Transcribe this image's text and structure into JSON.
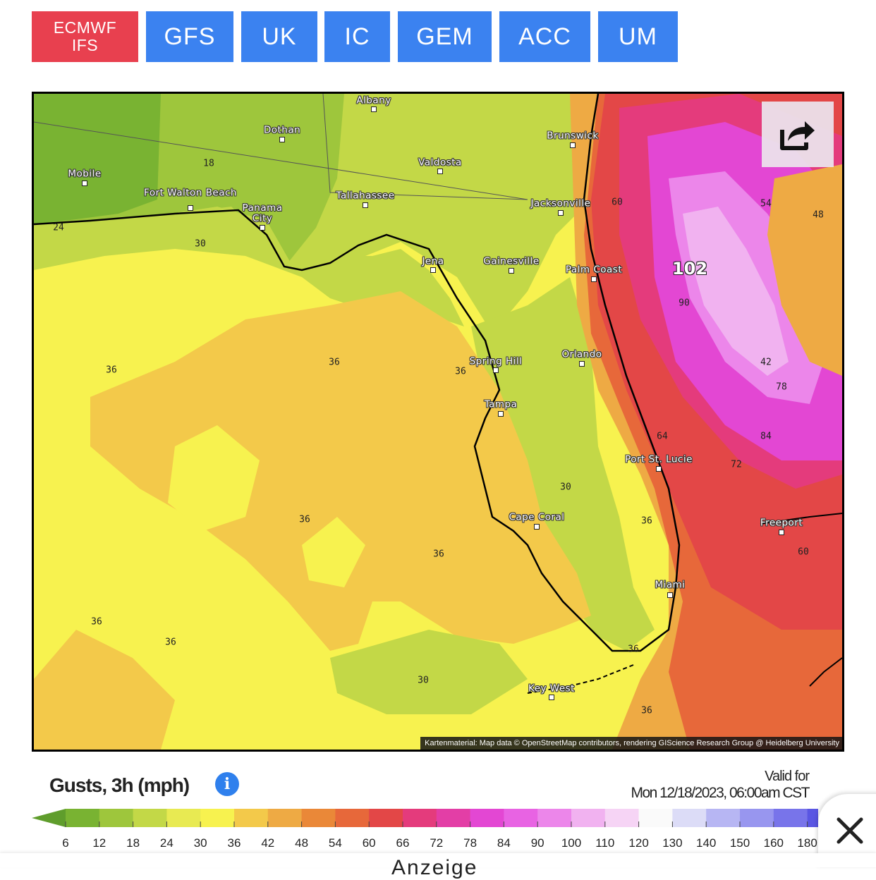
{
  "model_tabs": [
    {
      "label_line1": "ECMWF",
      "label_line2": "IFS",
      "active": true
    },
    {
      "label": "GFS",
      "active": false
    },
    {
      "label": "UK",
      "active": false
    },
    {
      "label": "IC",
      "active": false
    },
    {
      "label": "GEM",
      "active": false
    },
    {
      "label": "ACC",
      "active": false
    },
    {
      "label": "UM",
      "active": false
    }
  ],
  "map": {
    "share_icon": "share-icon",
    "attribution": "Kartenmaterial: Map data © OpenStreetMap contributors, rendering GIScience Research Group @ Heidelberg University",
    "cities": [
      "Albany",
      "Dothan",
      "Brunswick",
      "Valdosta",
      "Mobile",
      "Fort Walton Beach",
      "Panama City",
      "Tallahassee",
      "Jacksonville",
      "Jena",
      "Gainesville",
      "Palm Coast",
      "Spring Hill",
      "Orlando",
      "Tampa",
      "Port St. Lucie",
      "Cape Coral",
      "Freeport",
      "Miami",
      "Key West"
    ],
    "contour_labels": [
      "18",
      "24",
      "30",
      "36",
      "36",
      "36",
      "36",
      "36",
      "36",
      "36",
      "36",
      "36",
      "30",
      "30",
      "36",
      "36",
      "60",
      "54",
      "48",
      "90",
      "42",
      "78",
      "84",
      "72",
      "64",
      "60"
    ],
    "max_label": "102"
  },
  "legend": {
    "title": "Gusts, 3h (mph)",
    "info_icon": "info-icon",
    "valid_label": "Valid for",
    "valid_time": "Mon 12/18/2023, 06:00am CST",
    "ticks": [
      "6",
      "12",
      "18",
      "24",
      "30",
      "36",
      "42",
      "48",
      "54",
      "60",
      "66",
      "72",
      "78",
      "84",
      "90",
      "100",
      "110",
      "120",
      "130",
      "140",
      "150",
      "160",
      "180"
    ],
    "colors": [
      "#5f9d2c",
      "#79b332",
      "#9ec63c",
      "#c3d847",
      "#e8ea52",
      "#f7f24f",
      "#f3c94a",
      "#eeaa44",
      "#ea8838",
      "#e7683a",
      "#e34747",
      "#e43b7c",
      "#e33ea6",
      "#e347d3",
      "#e863e3",
      "#ec86ea",
      "#f1b2f0",
      "#f6d4f5",
      "#fafafa",
      "#dcdcf7",
      "#b7b6f3",
      "#9896ef",
      "#7874ea",
      "#5a56e3"
    ]
  },
  "close_icon": "close-icon",
  "footer_text": "Anzeige"
}
